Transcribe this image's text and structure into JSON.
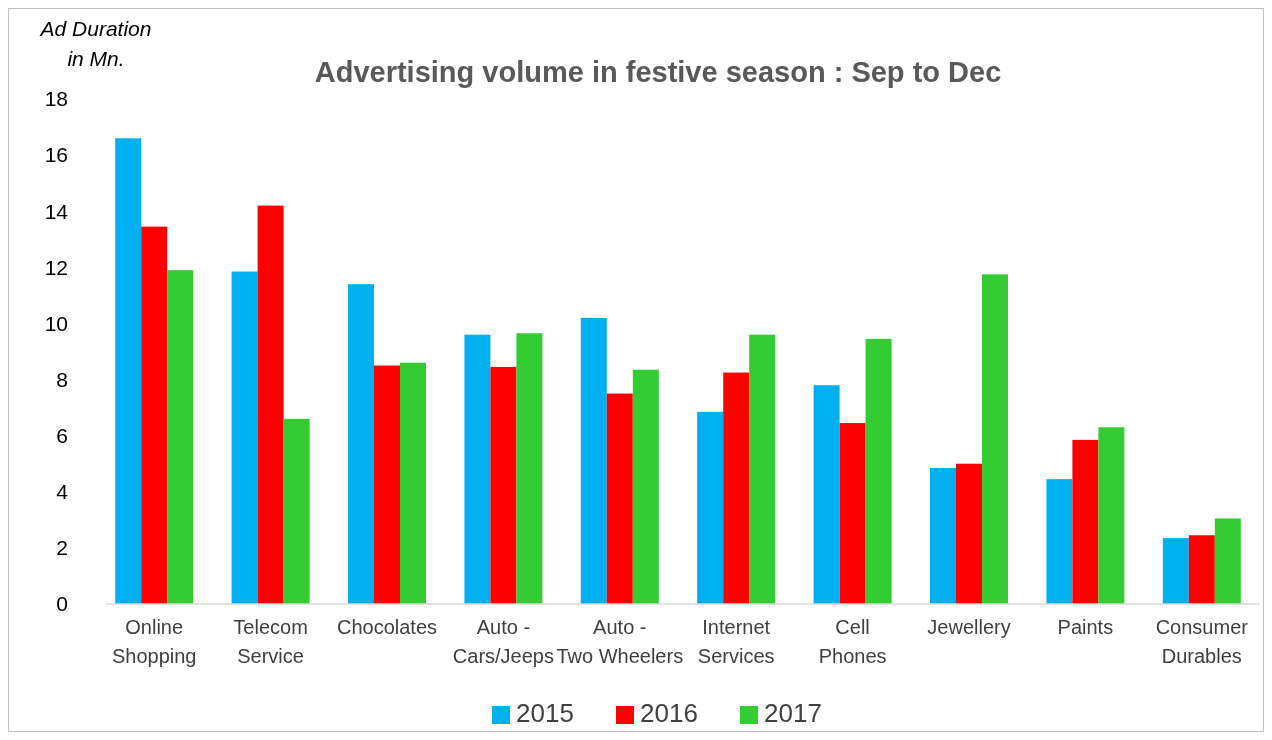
{
  "chart_data": {
    "type": "bar",
    "title": "Advertising volume in festive season : Sep to Dec",
    "ylabel": "Ad Duration in Mn.",
    "categories": [
      "Online Shopping",
      "Telecom Service",
      "Chocolates",
      "Auto - Cars/Jeeps",
      "Auto - Two Wheelers",
      "Internet Services",
      "Cell Phones",
      "Jewellery",
      "Paints",
      "Consumer Durables"
    ],
    "series": [
      {
        "name": "2015",
        "color": "#00b0f0",
        "values": [
          16.6,
          11.85,
          11.4,
          9.6,
          10.2,
          6.85,
          7.8,
          4.85,
          4.45,
          2.35
        ]
      },
      {
        "name": "2016",
        "color": "#ff0000",
        "values": [
          13.45,
          14.2,
          8.5,
          8.45,
          7.5,
          8.25,
          6.45,
          5.0,
          5.85,
          2.45
        ]
      },
      {
        "name": "2017",
        "color": "#33cc33",
        "values": [
          11.9,
          6.6,
          8.6,
          9.65,
          8.35,
          9.6,
          9.45,
          11.75,
          6.3,
          3.05
        ]
      }
    ],
    "ylim": [
      0,
      18
    ],
    "yticks": [
      0,
      2,
      4,
      6,
      8,
      10,
      12,
      14,
      16,
      18
    ],
    "grid": false,
    "legend": "bottom"
  }
}
